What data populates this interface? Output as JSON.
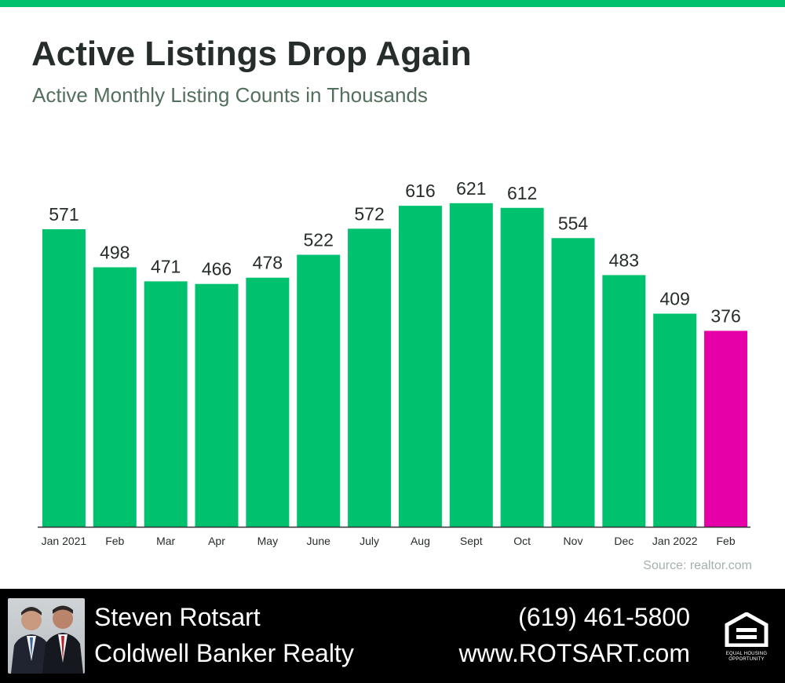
{
  "title": "Active Listings Drop Again",
  "subtitle": "Active Monthly Listing Counts in Thousands",
  "source": "Source: realtor.com",
  "chart_data": {
    "type": "bar",
    "categories": [
      "Jan 2021",
      "Feb",
      "Mar",
      "Apr",
      "May",
      "June",
      "July",
      "Aug",
      "Sept",
      "Oct",
      "Nov",
      "Dec",
      "Jan 2022",
      "Feb"
    ],
    "values": [
      571,
      498,
      471,
      466,
      478,
      522,
      572,
      616,
      621,
      612,
      554,
      483,
      409,
      376
    ],
    "data_labels": [
      "571",
      "498",
      "471",
      "466",
      "478",
      "522",
      "572",
      "616",
      "621",
      "612",
      "554",
      "483",
      "409",
      "376"
    ],
    "title": "Active Listings Drop Again",
    "subtitle": "Active Monthly Listing Counts in Thousands",
    "xlabel": "",
    "ylabel": "",
    "ylim": [
      0,
      640
    ],
    "grid": false,
    "legend": "none",
    "colors": {
      "bar": "#00c16e",
      "highlight_bar": "#e600a8",
      "axis": "#333333",
      "label": "#262d2b"
    },
    "highlight_category_index": 13
  },
  "footer": {
    "agent_name": "Steven Rotsart",
    "company": "Coldwell Banker Realty",
    "phone": "(619) 461-5800",
    "website": "www.ROTSART.com",
    "equal_housing_text_1": "EQUAL HOUSING",
    "equal_housing_text_2": "OPPORTUNITY"
  },
  "icons": {
    "photo": "agent-photo",
    "logo": "equal-housing-icon"
  }
}
